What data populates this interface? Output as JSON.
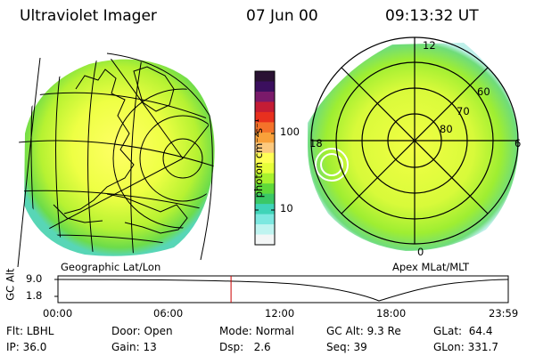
{
  "header": {
    "instrument": "Ultraviolet Imager",
    "date": "07 Jun 00",
    "time": "09:13:32 UT"
  },
  "left_panel": {
    "caption": "Geographic Lat/Lon"
  },
  "colorbar": {
    "label": "photon cm⁻²s⁻¹",
    "scale": "log",
    "ticks": [
      {
        "value": 100,
        "label": "100"
      },
      {
        "value": 10,
        "label": "10"
      }
    ],
    "colors": [
      "#2a1233",
      "#3b0f5e",
      "#7a1a6a",
      "#c41c35",
      "#e8301e",
      "#f4722a",
      "#f9a13a",
      "#fcc97e",
      "#ffff55",
      "#e6ff3a",
      "#a8f22e",
      "#5fd93a",
      "#3ac866",
      "#40d4b8",
      "#7de8e0",
      "#bff4f0",
      "#f3f6f6"
    ]
  },
  "right_panel": {
    "caption": "Apex MLat/MLT",
    "mlt_labels": {
      "top": "12",
      "left": "18",
      "right": "6",
      "bottom": "0"
    },
    "lat_labels": [
      "60",
      "70",
      "80"
    ]
  },
  "timeline": {
    "ylabel": "GC Alt",
    "yticks": [
      "9.0",
      "1.8"
    ],
    "xticks": [
      "00:00",
      "06:00",
      "12:00",
      "18:00",
      "23:59"
    ],
    "current_hour": 9.226
  },
  "info": {
    "flt_label": "Flt:",
    "flt_value": "LBHL",
    "ip_label": "IP:",
    "ip_value": "36.0",
    "door_label": "Door:",
    "door_value": "Open",
    "gain_label": "Gain:",
    "gain_value": "13",
    "mode_label": "Mode:",
    "mode_value": "Normal",
    "dsp_label": "Dsp:",
    "dsp_value": "2.6",
    "gcalt_label": "GC Alt:",
    "gcalt_value": "9.3 Re",
    "seq_label": "Seq:",
    "seq_value": "39",
    "glat_label": "GLat:",
    "glat_value": "64.4",
    "glon_label": "GLon:",
    "glon_value": "331.7"
  }
}
